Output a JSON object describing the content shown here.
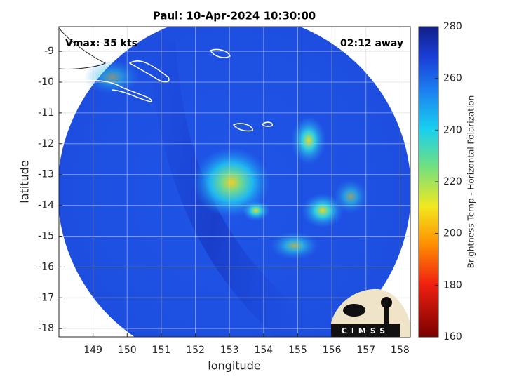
{
  "chart_data": {
    "type": "image",
    "title": "Paul: 10-Apr-2024 10:30:00",
    "xlabel": "longitude",
    "ylabel": "latitude",
    "annotations": [
      "Vmax: 35 kts",
      "02:12 away"
    ],
    "xlim": [
      148.0,
      158.3
    ],
    "ylim": [
      -18.27,
      -8.2
    ],
    "xticks": [
      149,
      150,
      151,
      152,
      153,
      154,
      155,
      156,
      157,
      158
    ],
    "yticks": [
      -9,
      -10,
      -11,
      -12,
      -13,
      -14,
      -15,
      -16,
      -17,
      -18
    ],
    "grid": true,
    "colorbar": {
      "label": "Brightness Temp - Horizontal Polarization",
      "lim": [
        160,
        280
      ],
      "ticks": [
        160,
        180,
        200,
        220,
        240,
        260,
        280
      ]
    },
    "logo_text": "CIMSS"
  }
}
